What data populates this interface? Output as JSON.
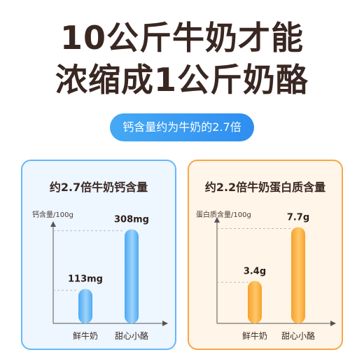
{
  "headline": {
    "line1": "10公斤牛奶才能",
    "line2": "浓缩成1公斤奶酪"
  },
  "tagline": "钙含量约为牛奶的2.7倍",
  "colors": {
    "blue_bar": "#4aaaf3",
    "orange_bar": "#f7a12b",
    "blue_border": "#68b7f6",
    "orange_border": "#f5a74a"
  },
  "chart_data": [
    {
      "type": "bar",
      "title": "约2.7倍牛奶钙含量",
      "ylabel": "钙含量/100g",
      "categories": [
        "鲜牛奶",
        "甜心小酪"
      ],
      "values": [
        113,
        308
      ],
      "data_labels": [
        "113mg",
        "308mg"
      ],
      "ylim": [
        0,
        330
      ]
    },
    {
      "type": "bar",
      "title": "约2.2倍牛奶蛋白质含量",
      "ylabel": "蛋白质含量/100g",
      "categories": [
        "鲜牛奶",
        "甜心小酪"
      ],
      "values": [
        3.4,
        7.7
      ],
      "data_labels": [
        "3.4g",
        "7.7g"
      ],
      "ylim": [
        0,
        8.4
      ]
    }
  ]
}
